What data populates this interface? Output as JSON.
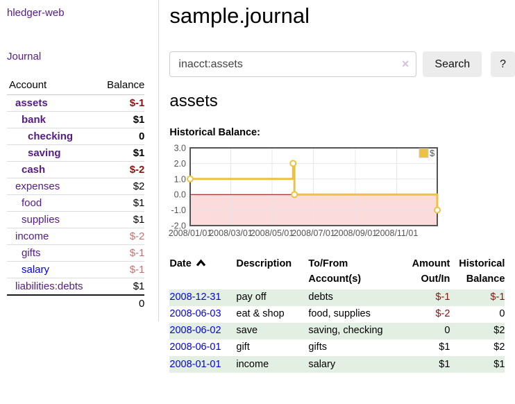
{
  "sidebar": {
    "app_title": "hledger-web",
    "nav_journal": "Journal",
    "accounts": {
      "col_account": "Account",
      "col_balance": "Balance",
      "rows": [
        {
          "label": "assets",
          "balance": "$-1",
          "depth": 0,
          "in_query": true,
          "link": "purple",
          "balance_style": "bold-neg"
        },
        {
          "label": "bank",
          "balance": "$1",
          "depth": 1,
          "in_query": true,
          "link": "purple",
          "balance_style": "bold"
        },
        {
          "label": "checking",
          "balance": "0",
          "depth": 2,
          "in_query": true,
          "link": "purple",
          "balance_style": "bold"
        },
        {
          "label": "saving",
          "balance": "$1",
          "depth": 2,
          "in_query": true,
          "link": "purple",
          "balance_style": "bold"
        },
        {
          "label": "cash",
          "balance": "$-2",
          "depth": 1,
          "in_query": true,
          "link": "purple",
          "balance_style": "bold-neg"
        },
        {
          "label": "expenses",
          "balance": "$2",
          "depth": 0,
          "in_query": false,
          "link": "purple",
          "balance_style": "plain"
        },
        {
          "label": "food",
          "balance": "$1",
          "depth": 1,
          "in_query": false,
          "link": "purple",
          "balance_style": "plain"
        },
        {
          "label": "supplies",
          "balance": "$1",
          "depth": 1,
          "in_query": false,
          "link": "purple",
          "balance_style": "plain"
        },
        {
          "label": "income",
          "balance": "$-2",
          "depth": 0,
          "in_query": false,
          "link": "purple",
          "balance_style": "muted-neg"
        },
        {
          "label": "gifts",
          "balance": "$-1",
          "depth": 1,
          "in_query": false,
          "link": "purple",
          "balance_style": "muted-neg"
        },
        {
          "label": "salary",
          "balance": "$-1",
          "depth": 1,
          "in_query": false,
          "link": "blue",
          "balance_style": "muted-neg"
        },
        {
          "label": "liabilities:debts",
          "balance": "$1",
          "depth": 0,
          "in_query": false,
          "link": "purple",
          "balance_style": "plain"
        }
      ],
      "total": "0"
    }
  },
  "main": {
    "title": "sample.journal",
    "search": {
      "value": "inacct:assets",
      "clear_icon": "×",
      "submit_label": "Search",
      "help_label": "?"
    },
    "account_title": "assets",
    "chart_heading": "Historical Balance:"
  },
  "chart_data": {
    "type": "line",
    "title": "Historical Balance",
    "steps": true,
    "ylim": [
      -2.0,
      3.0
    ],
    "yticks": [
      "3.0",
      "2.0",
      "1.0",
      "0.0",
      "-1.0",
      "-2.0"
    ],
    "xtick_labels": [
      "2008/01/01",
      "2008/03/01",
      "2008/05/01",
      "2008/07/01",
      "2008/09/01",
      "2008/11/01"
    ],
    "xtick_days": [
      0,
      60,
      121,
      182,
      244,
      305
    ],
    "total_days": 365,
    "legend": {
      "label": "$",
      "position": "top-right"
    },
    "series": [
      {
        "name": "$",
        "color": "#edc240",
        "marker": "circle",
        "points": [
          {
            "date": "2008-01-01",
            "day": 0,
            "value": 1
          },
          {
            "date": "2008-06-01",
            "day": 152,
            "value": 2
          },
          {
            "date": "2008-06-02",
            "day": 153,
            "value": 2
          },
          {
            "date": "2008-06-03",
            "day": 154,
            "value": 0
          },
          {
            "date": "2008-12-31",
            "day": 365,
            "value": -1
          }
        ]
      }
    ],
    "negative_region": {
      "from": 0,
      "to": -2
    },
    "colors": {
      "region": "#fbdbdb",
      "zero_line": "#8b0000",
      "border": "#545454",
      "grid": "#e6e6e6",
      "tick_text": "#545454",
      "legend_box_border": "#cccccc"
    }
  },
  "register": {
    "columns": [
      {
        "lines": [
          "Date"
        ],
        "align": "left",
        "sort_icon": "caret-up"
      },
      {
        "lines": [
          "Description"
        ],
        "align": "left"
      },
      {
        "lines": [
          "To/From",
          "Account(s)"
        ],
        "align": "left"
      },
      {
        "lines": [
          "Amount",
          "Out/In"
        ],
        "align": "right"
      },
      {
        "lines": [
          "Historical",
          "Balance"
        ],
        "align": "right"
      }
    ],
    "rows": [
      {
        "date": "2008-12-31",
        "description": "pay off",
        "accounts": "debts",
        "amount": "$-1",
        "amount_negative": true,
        "balance": "$-1",
        "balance_negative": true,
        "stripe": true
      },
      {
        "date": "2008-06-03",
        "description": "eat & shop",
        "accounts": "food, supplies",
        "amount": "$-2",
        "amount_negative": true,
        "balance": "0",
        "balance_negative": false,
        "stripe": false
      },
      {
        "date": "2008-06-02",
        "description": "save",
        "accounts": "saving, checking",
        "amount": "0",
        "amount_negative": false,
        "balance": "$2",
        "balance_negative": false,
        "stripe": true
      },
      {
        "date": "2008-06-01",
        "description": "gift",
        "accounts": "gifts",
        "amount": "$1",
        "amount_negative": false,
        "balance": "$2",
        "balance_negative": false,
        "stripe": false
      },
      {
        "date": "2008-01-01",
        "description": "income",
        "accounts": "salary",
        "amount": "$1",
        "amount_negative": false,
        "balance": "$1",
        "balance_negative": false,
        "stripe": true
      }
    ]
  }
}
